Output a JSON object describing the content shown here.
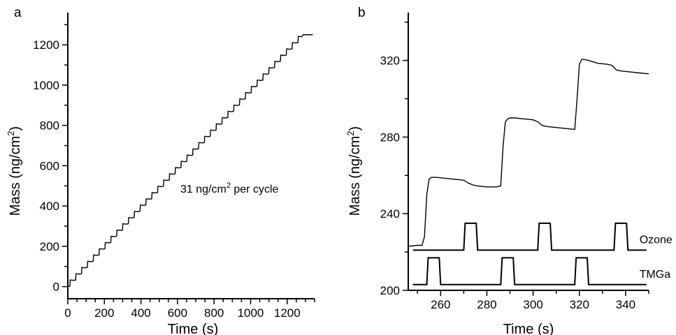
{
  "chart_data": [
    {
      "type": "line",
      "panel_label": "a",
      "xlabel": "Time (s)",
      "ylabel": "Mass (ng/cm2)",
      "ylabel_parts": {
        "before": "Mass (ng/cm",
        "sup": "2",
        "after": ")"
      },
      "xlim": [
        0,
        1350
      ],
      "ylim": [
        -60,
        1360
      ],
      "xticks": [
        0,
        200,
        400,
        600,
        800,
        1000,
        1200
      ],
      "yticks": [
        0,
        200,
        400,
        600,
        800,
        1000,
        1200
      ],
      "annotation": "31 ng/cm2 per cycle",
      "annotation_parts": {
        "before": "31 ng/cm",
        "sup": "2",
        "after": " per cycle"
      },
      "series": [
        {
          "description": "staircase mass gain",
          "start_time": 0,
          "cycle_period_s": 32,
          "step_per_cycle": 31,
          "cycles": 40,
          "end_time": 1340,
          "end_value": 1250
        }
      ]
    },
    {
      "type": "line",
      "panel_label": "b",
      "xlabel": "Time (s)",
      "ylabel": "Mass (ng/cm2)",
      "ylabel_parts": {
        "before": "Mass (ng/cm",
        "sup": "2",
        "after": ")"
      },
      "xlim": [
        246,
        350
      ],
      "ylim": [
        200,
        345
      ],
      "xticks": [
        260,
        280,
        300,
        320,
        340
      ],
      "yticks": [
        200,
        240,
        280,
        320
      ],
      "series": [
        {
          "name": "Mass",
          "x": [
            246,
            250,
            252,
            253,
            254,
            255,
            256,
            258,
            262,
            266,
            270,
            272,
            274,
            276,
            280,
            284,
            286,
            287,
            288,
            289,
            290,
            292,
            296,
            300,
            302,
            304,
            306,
            310,
            314,
            318,
            319,
            320,
            321,
            322,
            324,
            328,
            332,
            334,
            336,
            338,
            342,
            346,
            350
          ],
          "y": [
            223,
            223.5,
            223.5,
            228,
            250,
            258,
            259,
            259,
            258.5,
            258,
            257.5,
            256,
            255,
            254.5,
            254,
            254,
            254.5,
            275,
            288,
            289.5,
            290,
            290,
            289.5,
            289,
            288,
            286,
            285.5,
            285,
            284.5,
            284,
            300,
            318,
            320.5,
            320.5,
            320,
            318.5,
            318,
            317.5,
            315,
            314.5,
            314,
            313.5,
            313
          ]
        }
      ],
      "pulses": [
        {
          "name": "Ozone",
          "baseline": 221,
          "high": 235,
          "on": [
            [
              270,
              276
            ],
            [
              302,
              308
            ],
            [
              335,
              341
            ]
          ]
        },
        {
          "name": "TMGa",
          "baseline": 203,
          "high": 217,
          "on": [
            [
              254,
              260
            ],
            [
              286,
              292
            ],
            [
              318,
              324
            ]
          ]
        }
      ],
      "pulse_x_end": 349
    }
  ]
}
